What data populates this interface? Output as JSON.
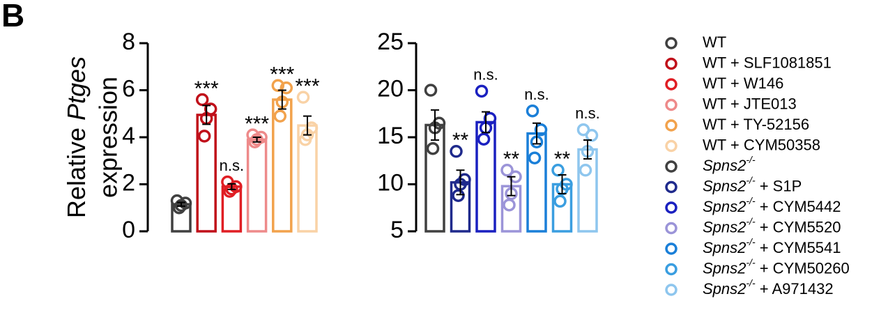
{
  "panel_label": "B",
  "chart_data": [
    {
      "type": "bar",
      "ylabel": [
        "Relative ",
        "Ptges",
        "expression"
      ],
      "ylim": [
        0,
        8
      ],
      "yticks": [
        0,
        2,
        4,
        6,
        8
      ],
      "series": [
        {
          "name": "WT",
          "color": "#404040",
          "value": 1.15,
          "error": 0.08,
          "points": [
            1.3,
            1.2,
            1.1,
            1.0
          ]
        },
        {
          "name": "WT + SLF1081851",
          "color": "#c0101a",
          "value": 4.95,
          "error": 0.4,
          "points": [
            5.6,
            5.2,
            4.8,
            4.05
          ],
          "label": "***"
        },
        {
          "name": "WT + W146",
          "color": "#e01e24",
          "value": 1.9,
          "error": 0.12,
          "points": [
            2.1,
            1.9,
            1.8,
            1.7
          ],
          "label": "n.s."
        },
        {
          "name": "WT + JTE013",
          "color": "#ee8a8a",
          "value": 3.9,
          "error": 0.1,
          "points": [
            4.1,
            4.0,
            3.9,
            3.8
          ],
          "label": "***"
        },
        {
          "name": "WT + TY-52156",
          "color": "#f2a24c",
          "value": 5.6,
          "error": 0.4,
          "points": [
            6.2,
            6.1,
            5.5,
            4.9
          ],
          "label": "***"
        },
        {
          "name": "WT + CYM50358",
          "color": "#f9d2a6",
          "value": 4.5,
          "error": 0.4,
          "points": [
            5.7,
            4.4,
            4.1,
            3.9
          ],
          "label": "***"
        }
      ]
    },
    {
      "type": "bar",
      "ylim": [
        5,
        25
      ],
      "yticks": [
        5,
        10,
        15,
        20,
        25
      ],
      "series": [
        {
          "name": "Spns2-/-",
          "color": "#404040",
          "value": 16.3,
          "error": 1.6,
          "points": [
            20.0,
            16.5,
            16.0,
            13.8
          ]
        },
        {
          "name": "Spns2-/- + S1P",
          "color": "#1f2a8c",
          "value": 10.2,
          "error": 1.3,
          "points": [
            13.5,
            10.5,
            10.0,
            8.8
          ],
          "label": "**"
        },
        {
          "name": "Spns2-/- + CYM5442",
          "color": "#1a20c0",
          "value": 16.6,
          "error": 1.1,
          "points": [
            19.9,
            17.0,
            16.0,
            14.8
          ],
          "label": "n.s."
        },
        {
          "name": "Spns2-/- + CYM5520",
          "color": "#9b94d8",
          "value": 9.8,
          "error": 1.0,
          "points": [
            11.5,
            10.8,
            9.0,
            7.8
          ],
          "label": "**"
        },
        {
          "name": "Spns2-/- + CYM5541",
          "color": "#1a7fd8",
          "value": 15.4,
          "error": 1.1,
          "points": [
            17.8,
            15.8,
            14.5,
            12.8
          ],
          "label": "n.s."
        },
        {
          "name": "Spns2-/- + CYM50260",
          "color": "#3a9ee0",
          "value": 10.0,
          "error": 1.0,
          "points": [
            11.5,
            10.0,
            9.5,
            8.2
          ],
          "label": "**"
        },
        {
          "name": "Spns2-/- + A971432",
          "color": "#8ec6ee",
          "value": 13.7,
          "error": 1.0,
          "points": [
            15.8,
            15.2,
            13.5,
            11.5
          ],
          "label": "n.s."
        }
      ]
    }
  ]
}
